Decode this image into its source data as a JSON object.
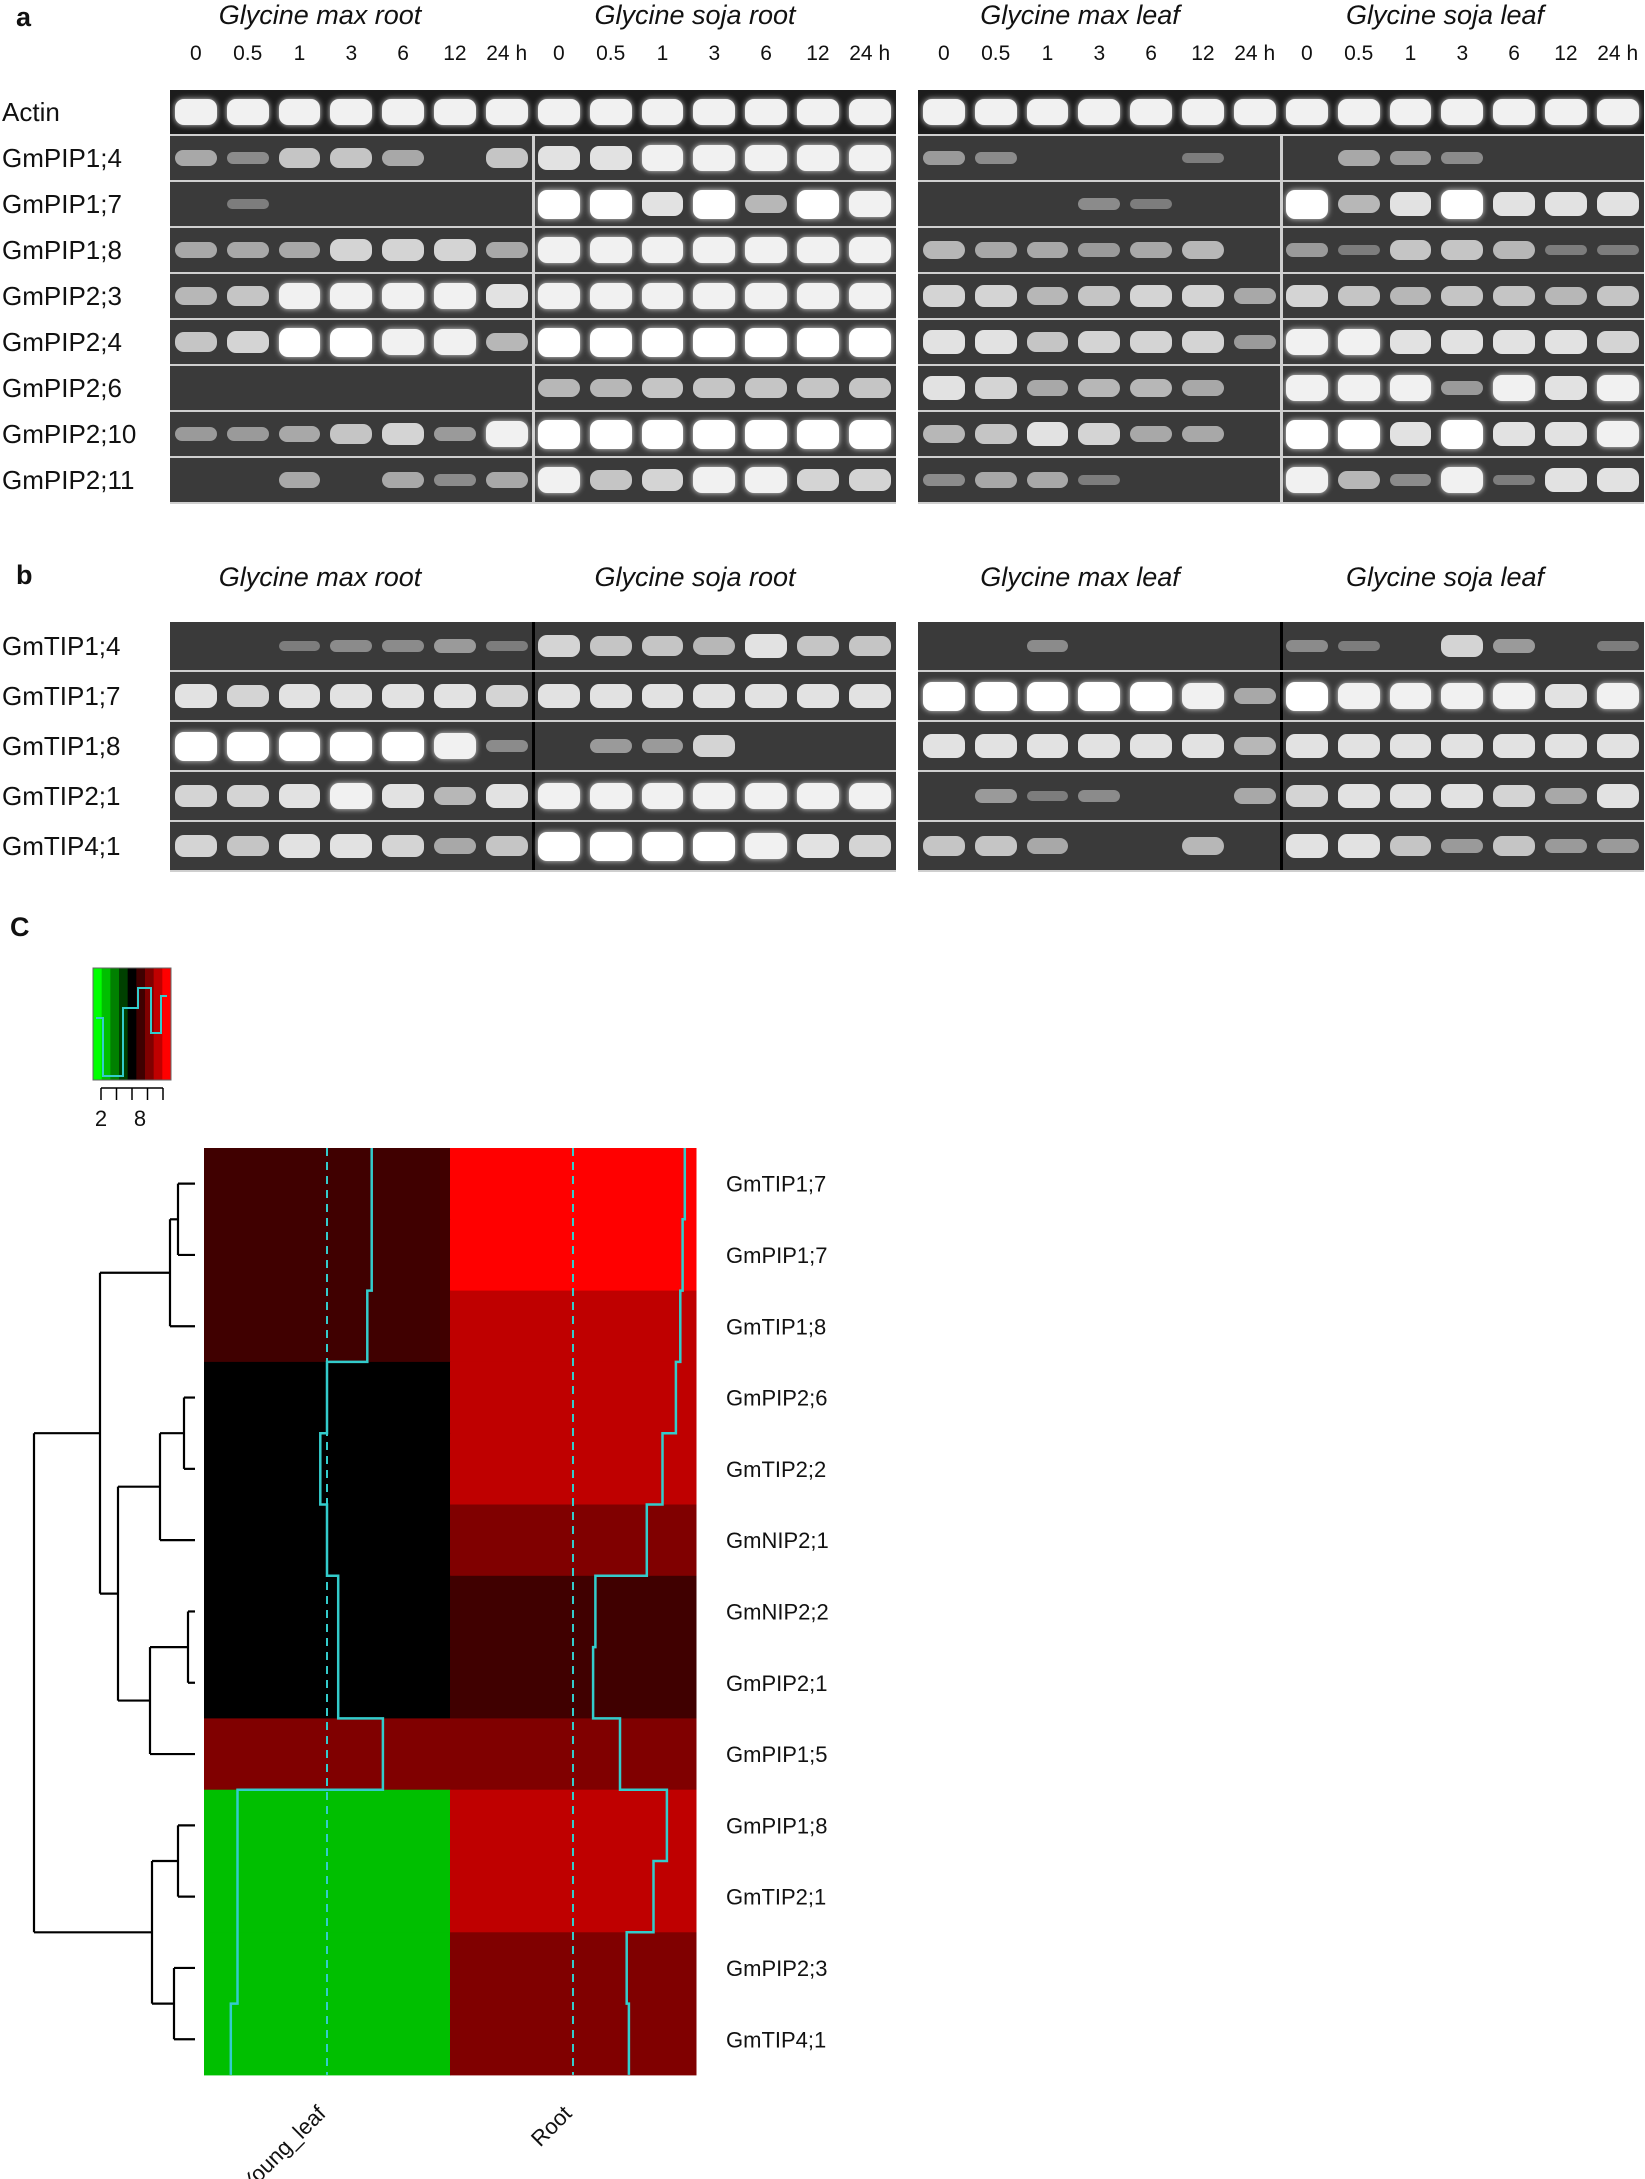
{
  "panel_a": {
    "letter": "a",
    "groups": [
      "Glycine max root",
      "Glycine soja root",
      "Glycine max leaf",
      "Glycine soja leaf"
    ],
    "timepoints": [
      "0",
      "0.5",
      "1",
      "3",
      "6",
      "12",
      "24 h"
    ],
    "genes": [
      "Actin",
      "GmPIP1;4",
      "GmPIP1;7",
      "GmPIP1;8",
      "GmPIP2;3",
      "GmPIP2;4",
      "GmPIP2;6",
      "GmPIP2;10",
      "GmPIP2;11"
    ],
    "band_intensity": [
      [
        [
          9,
          9,
          9,
          9,
          9,
          9,
          9
        ],
        [
          9,
          9,
          9,
          9,
          9,
          9,
          9
        ],
        [
          9,
          9,
          9,
          9,
          9,
          9,
          9
        ],
        [
          9,
          9,
          9,
          9,
          9,
          9,
          9
        ]
      ],
      [
        [
          4,
          2,
          6,
          6,
          4,
          0,
          6
        ],
        [
          8,
          8,
          9,
          9,
          9,
          9,
          9
        ],
        [
          3,
          2,
          0,
          0,
          0,
          1,
          0
        ],
        [
          0,
          4,
          3,
          2,
          0,
          0,
          0
        ]
      ],
      [
        [
          0,
          1,
          0,
          0,
          0,
          0,
          0
        ],
        [
          10,
          10,
          8,
          10,
          5,
          10,
          9
        ],
        [
          0,
          0,
          0,
          2,
          1,
          0,
          0
        ],
        [
          10,
          5,
          8,
          10,
          8,
          8,
          8
        ]
      ],
      [
        [
          4,
          4,
          4,
          7,
          7,
          7,
          4
        ],
        [
          9,
          9,
          9,
          9,
          9,
          9,
          9
        ],
        [
          5,
          4,
          4,
          3,
          4,
          5,
          0
        ],
        [
          3,
          1,
          6,
          6,
          5,
          1,
          1
        ]
      ],
      [
        [
          5,
          6,
          9,
          9,
          9,
          9,
          8
        ],
        [
          9,
          9,
          9,
          9,
          9,
          9,
          9
        ],
        [
          7,
          7,
          5,
          6,
          7,
          7,
          4
        ],
        [
          7,
          6,
          5,
          6,
          6,
          5,
          6
        ]
      ],
      [
        [
          6,
          7,
          10,
          10,
          9,
          9,
          5
        ],
        [
          10,
          10,
          10,
          10,
          10,
          10,
          10
        ],
        [
          8,
          8,
          6,
          7,
          7,
          7,
          3
        ],
        [
          9,
          9,
          8,
          8,
          8,
          8,
          7
        ]
      ],
      [
        [
          0,
          0,
          0,
          0,
          0,
          0,
          0
        ],
        [
          5,
          5,
          6,
          6,
          6,
          6,
          6
        ],
        [
          8,
          7,
          4,
          5,
          5,
          4,
          0
        ],
        [
          9,
          9,
          9,
          3,
          9,
          8,
          9
        ]
      ],
      [
        [
          3,
          3,
          4,
          6,
          7,
          3,
          9
        ],
        [
          10,
          10,
          10,
          10,
          10,
          10,
          10
        ],
        [
          5,
          6,
          8,
          7,
          4,
          4,
          0
        ],
        [
          10,
          10,
          8,
          10,
          8,
          8,
          9
        ]
      ],
      [
        [
          0,
          0,
          4,
          0,
          4,
          2,
          4
        ],
        [
          9,
          6,
          7,
          9,
          9,
          7,
          7
        ],
        [
          2,
          4,
          4,
          1,
          0,
          0,
          0
        ],
        [
          9,
          5,
          2,
          9,
          1,
          8,
          8
        ]
      ]
    ]
  },
  "panel_b": {
    "letter": "b",
    "groups": [
      "Glycine max root",
      "Glycine soja root",
      "Glycine max leaf",
      "Glycine soja leaf"
    ],
    "genes": [
      "GmTIP1;4",
      "GmTIP1;7",
      "GmTIP1;8",
      "GmTIP2;1",
      "GmTIP4;1"
    ],
    "band_intensity": [
      [
        [
          0,
          0,
          1,
          2,
          2,
          3,
          1
        ],
        [
          7,
          6,
          6,
          5,
          8,
          6,
          6
        ],
        [
          0,
          0,
          2,
          0,
          0,
          0,
          0
        ],
        [
          2,
          1,
          0,
          7,
          3,
          0,
          1
        ]
      ],
      [
        [
          8,
          7,
          8,
          8,
          8,
          8,
          7
        ],
        [
          8,
          8,
          8,
          8,
          8,
          8,
          8
        ],
        [
          10,
          10,
          10,
          10,
          10,
          9,
          4
        ],
        [
          10,
          9,
          9,
          9,
          9,
          8,
          9
        ]
      ],
      [
        [
          10,
          10,
          10,
          10,
          10,
          9,
          2
        ],
        [
          0,
          3,
          3,
          7,
          0,
          0,
          0
        ],
        [
          8,
          8,
          8,
          8,
          8,
          8,
          5
        ],
        [
          8,
          8,
          8,
          8,
          8,
          8,
          8
        ]
      ],
      [
        [
          7,
          7,
          8,
          9,
          8,
          5,
          8
        ],
        [
          9,
          9,
          9,
          9,
          9,
          9,
          9
        ],
        [
          0,
          3,
          1,
          2,
          0,
          0,
          4
        ],
        [
          7,
          8,
          8,
          8,
          7,
          4,
          8
        ]
      ],
      [
        [
          7,
          6,
          8,
          8,
          7,
          4,
          6
        ],
        [
          10,
          10,
          10,
          10,
          9,
          8,
          7
        ],
        [
          6,
          6,
          4,
          0,
          0,
          5,
          0
        ],
        [
          8,
          8,
          6,
          3,
          6,
          3,
          3
        ]
      ]
    ]
  },
  "panel_c": {
    "letter": "C",
    "chart_data": {
      "type": "heatmap",
      "columns": [
        "Young_leaf",
        "Root"
      ],
      "rows": [
        "GmTIP1;7",
        "GmPIP1;7",
        "GmTIP1;8",
        "GmPIP2;6",
        "GmTIP2;2",
        "GmNIP2;1",
        "GmNIP2;2",
        "GmPIP2;1",
        "GmPIP1;5",
        "GmPIP1;8",
        "GmTIP2;1",
        "GmPIP2;3",
        "GmTIP4;1"
      ],
      "values": [
        [
          7.5,
          10.5
        ],
        [
          7.5,
          10.4
        ],
        [
          7.3,
          10.3
        ],
        [
          5.5,
          10.1
        ],
        [
          5.2,
          9.5
        ],
        [
          5.5,
          8.8
        ],
        [
          6.0,
          6.5
        ],
        [
          6.0,
          6.4
        ],
        [
          8.0,
          7.6
        ],
        [
          1.5,
          9.7
        ],
        [
          1.5,
          9.1
        ],
        [
          1.5,
          7.9
        ],
        [
          1.2,
          8.0
        ]
      ],
      "color_key": {
        "tick_labels": [
          "2",
          "8"
        ],
        "low_color": "#00ff00",
        "mid_color": "#000000",
        "high_color": "#ff0000"
      },
      "trace_color": "#33cccc"
    }
  }
}
